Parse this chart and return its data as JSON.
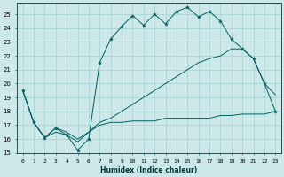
{
  "title": "",
  "xlabel": "Humidex (Indice chaleur)",
  "bg_color": "#cce8e8",
  "grid_color": "#aad4d4",
  "line_color": "#006060",
  "xlim": [
    -0.5,
    23.5
  ],
  "ylim": [
    15,
    25.8
  ],
  "xticks": [
    0,
    1,
    2,
    3,
    4,
    5,
    6,
    7,
    8,
    9,
    10,
    11,
    12,
    13,
    14,
    15,
    16,
    17,
    18,
    19,
    20,
    21,
    22,
    23
  ],
  "yticks": [
    15,
    16,
    17,
    18,
    19,
    20,
    21,
    22,
    23,
    24,
    25
  ],
  "series1_x": [
    0,
    1,
    2,
    3,
    4,
    5,
    6,
    7,
    8,
    9,
    10,
    11,
    12,
    13,
    14,
    15,
    16,
    17,
    18,
    19,
    20,
    21,
    22,
    23
  ],
  "series1_y": [
    19.5,
    17.2,
    16.1,
    16.8,
    16.3,
    15.2,
    16.0,
    21.5,
    23.2,
    24.1,
    24.9,
    24.2,
    25.0,
    24.3,
    25.2,
    25.5,
    24.8,
    25.2,
    24.5,
    23.2,
    22.5,
    21.8,
    20.0,
    18.0
  ],
  "series2_x": [
    0,
    1,
    2,
    3,
    4,
    5,
    6,
    7,
    8,
    9,
    10,
    11,
    12,
    13,
    14,
    15,
    16,
    17,
    18,
    19,
    20,
    21,
    22,
    23
  ],
  "series2_y": [
    19.5,
    17.2,
    16.1,
    16.5,
    16.3,
    15.8,
    16.5,
    17.2,
    17.5,
    18.0,
    18.5,
    19.0,
    19.5,
    20.0,
    20.5,
    21.0,
    21.5,
    21.8,
    22.0,
    22.5,
    22.5,
    21.8,
    20.0,
    19.2
  ],
  "series3_x": [
    0,
    1,
    2,
    3,
    4,
    5,
    6,
    7,
    8,
    9,
    10,
    11,
    12,
    13,
    14,
    15,
    16,
    17,
    18,
    19,
    20,
    21,
    22,
    23
  ],
  "series3_y": [
    19.5,
    17.2,
    16.1,
    16.8,
    16.5,
    16.0,
    16.5,
    17.0,
    17.2,
    17.2,
    17.3,
    17.3,
    17.3,
    17.5,
    17.5,
    17.5,
    17.5,
    17.5,
    17.7,
    17.7,
    17.8,
    17.8,
    17.8,
    18.0
  ]
}
